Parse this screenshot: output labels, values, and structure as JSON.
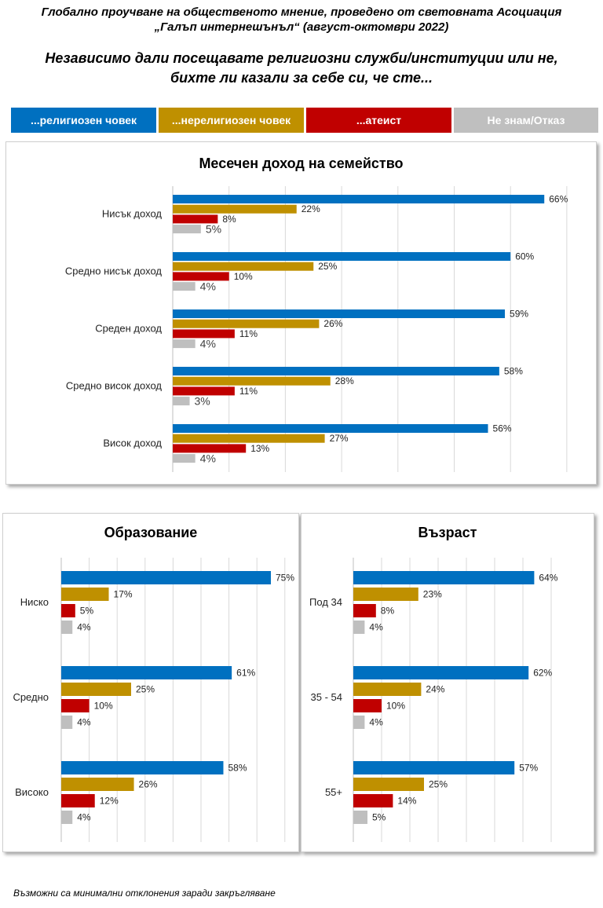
{
  "header": {
    "line1": "Глобално проучване на общественото мнение, проведено от световната Асоциация",
    "line2": "„Галъп интернешънъл“ (август-октомври 2022)",
    "question1": "Независимо дали посещавате религиозни служби/институции или не,",
    "question2": "бихте ли казали за себе си, че сте..."
  },
  "legend": [
    {
      "label": "...религиозен човек",
      "color": "#0070c0"
    },
    {
      "label": "...нерелигиозен човек",
      "color": "#bf9000"
    },
    {
      "label": "...атеист",
      "color": "#c00000"
    },
    {
      "label": "Не знам/Отказ",
      "color": "#bfbfbf"
    }
  ],
  "chart_data": [
    {
      "type": "bar",
      "title": "Месечен доход на семейство",
      "categories": [
        "Нисък доход",
        "Средно нисък доход",
        "Среден доход",
        "Средно висок доход",
        "Висок доход"
      ],
      "series": [
        {
          "name": "...религиозен човек",
          "values": [
            66,
            60,
            59,
            58,
            56
          ]
        },
        {
          "name": "...нерелигиозен човек",
          "values": [
            22,
            25,
            26,
            28,
            27
          ]
        },
        {
          "name": "...атеист",
          "values": [
            8,
            10,
            11,
            11,
            13
          ]
        },
        {
          "name": "Не знам/Отказ",
          "values": [
            5,
            4,
            4,
            3,
            4
          ]
        }
      ],
      "value_suffix": "%",
      "xlim": [
        0,
        70
      ],
      "grid": true
    },
    {
      "type": "bar",
      "title": "Образование",
      "categories": [
        "Ниско",
        "Средно",
        "Високо"
      ],
      "series": [
        {
          "name": "...религиозен човек",
          "values": [
            75,
            61,
            58
          ]
        },
        {
          "name": "...нерелигиозен човек",
          "values": [
            17,
            25,
            26
          ]
        },
        {
          "name": "...атеист",
          "values": [
            5,
            10,
            12
          ]
        },
        {
          "name": "Не знам/Отказ",
          "values": [
            4,
            4,
            4
          ]
        }
      ],
      "value_suffix": "%",
      "xlim": [
        0,
        80
      ],
      "grid": true
    },
    {
      "type": "bar",
      "title": "Възраст",
      "categories": [
        "Под 34",
        "35 - 54",
        "55+"
      ],
      "series": [
        {
          "name": "...религиозен човек",
          "values": [
            64,
            62,
            57
          ]
        },
        {
          "name": "...нерелигиозен човек",
          "values": [
            23,
            24,
            25
          ]
        },
        {
          "name": "...атеист",
          "values": [
            8,
            10,
            14
          ]
        },
        {
          "name": "Не знам/Отказ",
          "values": [
            4,
            4,
            5
          ]
        }
      ],
      "value_suffix": "%",
      "xlim": [
        0,
        70
      ],
      "grid": true
    }
  ],
  "footnote": "Възможни са минимални отклонения заради закръгляване"
}
